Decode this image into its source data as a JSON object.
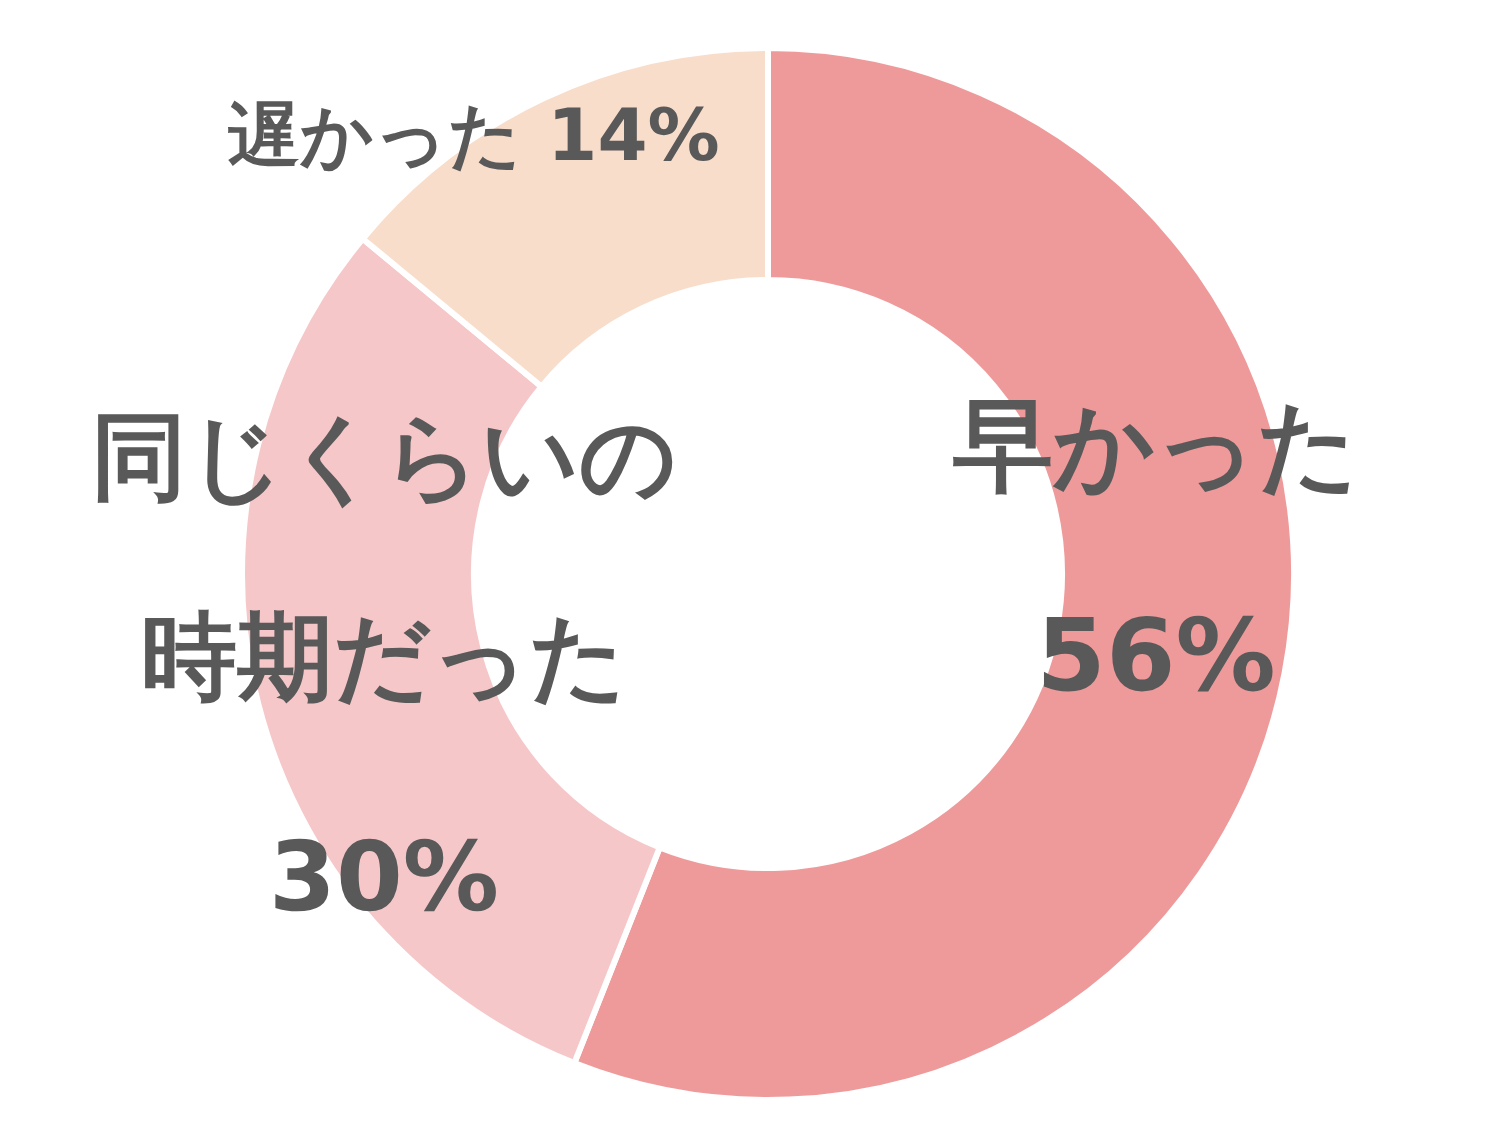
{
  "chart_data": {
    "type": "donut",
    "categories": [
      "早かった",
      "同じくらいの時期だった",
      "遅かった"
    ],
    "values": [
      56,
      30,
      14
    ],
    "colors": [
      "#ef9a9a",
      "#f6c7c8",
      "#f9ddcb"
    ],
    "value_labels": [
      "56%",
      "30%",
      "14%"
    ]
  }
}
